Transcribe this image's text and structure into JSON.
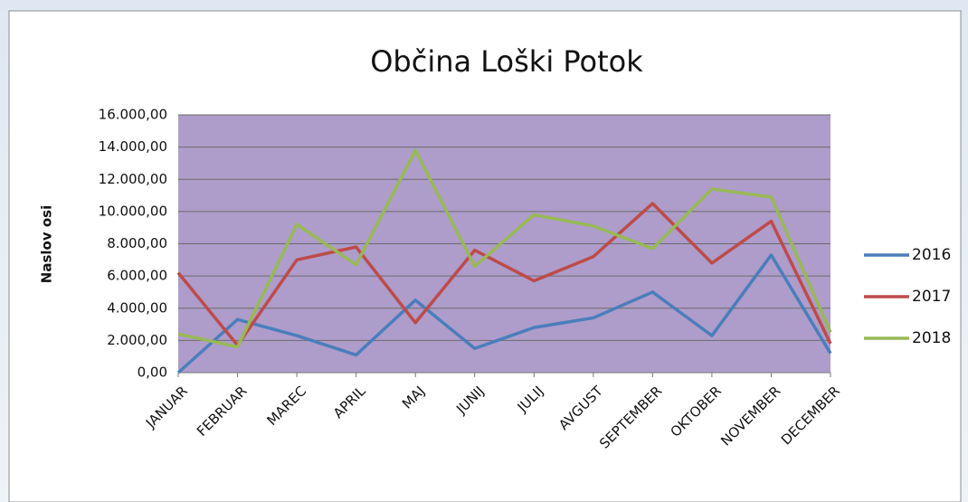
{
  "chart_data": {
    "type": "line",
    "title": "Občina Loški Potok",
    "y_label": "Naslov osi",
    "categories": [
      "JANUAR",
      "FEBRUAR",
      "MAREC",
      "APRIL",
      "MAJ",
      "JUNIJ",
      "JULIJ",
      "AVGUST",
      "SEPTEMBER",
      "OKTOBER",
      "NOVEMBER",
      "DECEMBER"
    ],
    "series": [
      {
        "name": "2016",
        "color": "#4a7ebb",
        "values": [
          0,
          3300,
          2300,
          1100,
          4500,
          1500,
          2800,
          3400,
          5000,
          2300,
          7300,
          1200
        ]
      },
      {
        "name": "2017",
        "color": "#be4b48",
        "values": [
          6200,
          1700,
          7000,
          7800,
          3100,
          7600,
          5700,
          7200,
          10500,
          6800,
          9400,
          1800
        ]
      },
      {
        "name": "2018",
        "color": "#98b954",
        "values": [
          2400,
          1600,
          9200,
          6700,
          13800,
          6600,
          9800,
          9100,
          7700,
          11400,
          10900,
          2500
        ]
      }
    ],
    "ylim": [
      0,
      16000
    ],
    "yticks": [
      {
        "value": 0,
        "label": "0,00"
      },
      {
        "value": 2000,
        "label": "2.000,00"
      },
      {
        "value": 4000,
        "label": "4.000,00"
      },
      {
        "value": 6000,
        "label": "6.000,00"
      },
      {
        "value": 8000,
        "label": "8.000,00"
      },
      {
        "value": 10000,
        "label": "10.000,00"
      },
      {
        "value": 12000,
        "label": "12.000,00"
      },
      {
        "value": 14000,
        "label": "14.000,00"
      },
      {
        "value": 16000,
        "label": "16.000,00"
      }
    ],
    "grid": true,
    "legend": "right",
    "plot_background": "#ae9ccb"
  }
}
